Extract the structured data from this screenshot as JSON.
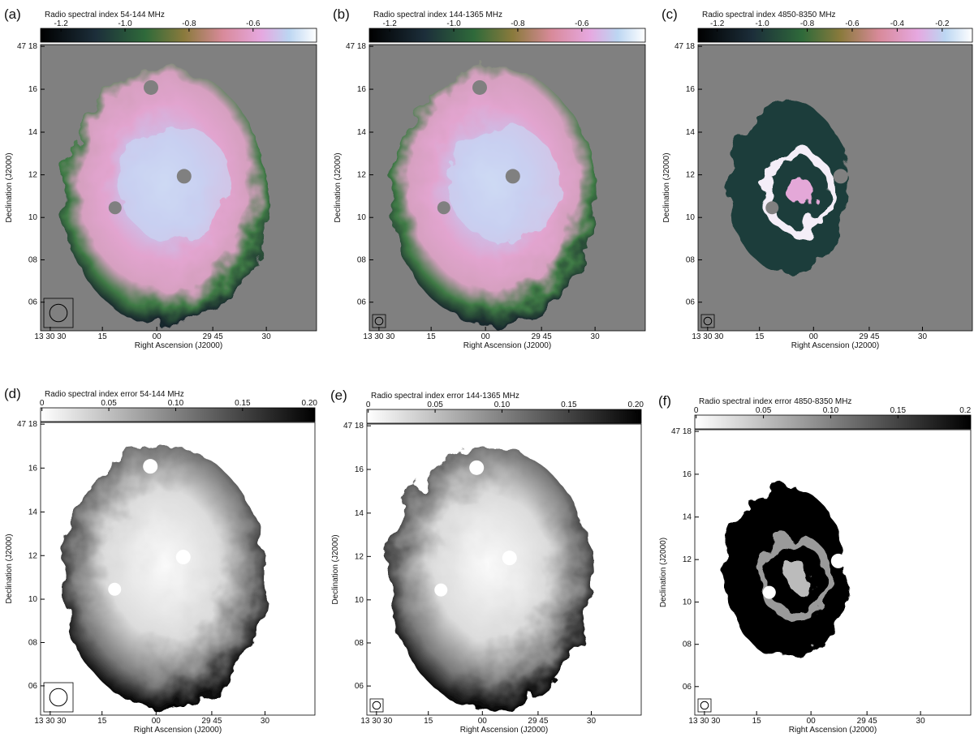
{
  "panels": [
    {
      "label": "(a)",
      "colorbar": {
        "title": "Radio spectral index 54-144 MHz",
        "ticks": [
          "-1.2",
          "-1.0",
          "-0.8",
          "-0.6"
        ]
      },
      "y_ticks": [
        "47 18",
        "16",
        "14",
        "12",
        "10",
        "08",
        "06"
      ],
      "x_ticks": [
        "13 30 30",
        "15",
        "00",
        "29 45",
        "30"
      ],
      "y_title": "Declination (J2000)",
      "x_title": "Right Ascension (J2000)"
    },
    {
      "label": "(b)",
      "colorbar": {
        "title": "Radio spectral index 144-1365 MHz",
        "ticks": [
          "-1.2",
          "-1.0",
          "-0.8",
          "-0.6"
        ]
      },
      "y_ticks": [
        "47 18",
        "16",
        "14",
        "12",
        "10",
        "08",
        "06"
      ],
      "x_ticks": [
        "13 30 30",
        "15",
        "00",
        "29 45",
        "30"
      ],
      "y_title": "Declination (J2000)",
      "x_title": "Right Ascension (J2000)"
    },
    {
      "label": "(c)",
      "colorbar": {
        "title": "Radio spectral index 4850-8350 MHz",
        "ticks": [
          "-1.2",
          "-1.0",
          "-0.8",
          "-0.6",
          "-0.4",
          "-0.2"
        ]
      },
      "y_ticks": [
        "47 18",
        "16",
        "14",
        "12",
        "10",
        "08",
        "06"
      ],
      "x_ticks": [
        "13 30 30",
        "15",
        "00",
        "29 45",
        "30"
      ],
      "y_title": "Declination (J2000)",
      "x_title": "Right Ascension (J2000)"
    },
    {
      "label": "(d)",
      "colorbar": {
        "title": "Radio spectral index error 54-144 MHz",
        "ticks": [
          "0",
          "0.05",
          "0.10",
          "0.15",
          "0.20"
        ]
      },
      "y_ticks": [
        "47 18",
        "16",
        "14",
        "12",
        "10",
        "08",
        "06"
      ],
      "x_ticks": [
        "13 30 30",
        "15",
        "00",
        "29 45",
        "30"
      ],
      "y_title": "Declination (J2000)",
      "x_title": "Right Ascension (J2000)"
    },
    {
      "label": "(e)",
      "colorbar": {
        "title": "Radio spectral index error 144-1365 MHz",
        "ticks": [
          "0",
          "0.05",
          "0.10",
          "0.15",
          "0.20"
        ]
      },
      "y_ticks": [
        "47 18",
        "16",
        "14",
        "12",
        "10",
        "08",
        "06"
      ],
      "x_ticks": [
        "13 30 30",
        "15",
        "00",
        "29 45",
        "30"
      ],
      "y_title": "Declination (J2000)",
      "x_title": "Right Ascension (J2000)"
    },
    {
      "label": "(f)",
      "colorbar": {
        "title": "Radio spectral index error 4850-8350 MHz",
        "ticks": [
          "0",
          "0.05",
          "0.10",
          "0.15",
          "0.2"
        ]
      },
      "y_ticks": [
        "47 18",
        "16",
        "14",
        "12",
        "10",
        "08",
        "06"
      ],
      "x_ticks": [
        "13 30 30",
        "15",
        "00",
        "29 45",
        "30"
      ],
      "y_title": "Declination (J2000)",
      "x_title": "Right Ascension (J2000)"
    }
  ]
}
